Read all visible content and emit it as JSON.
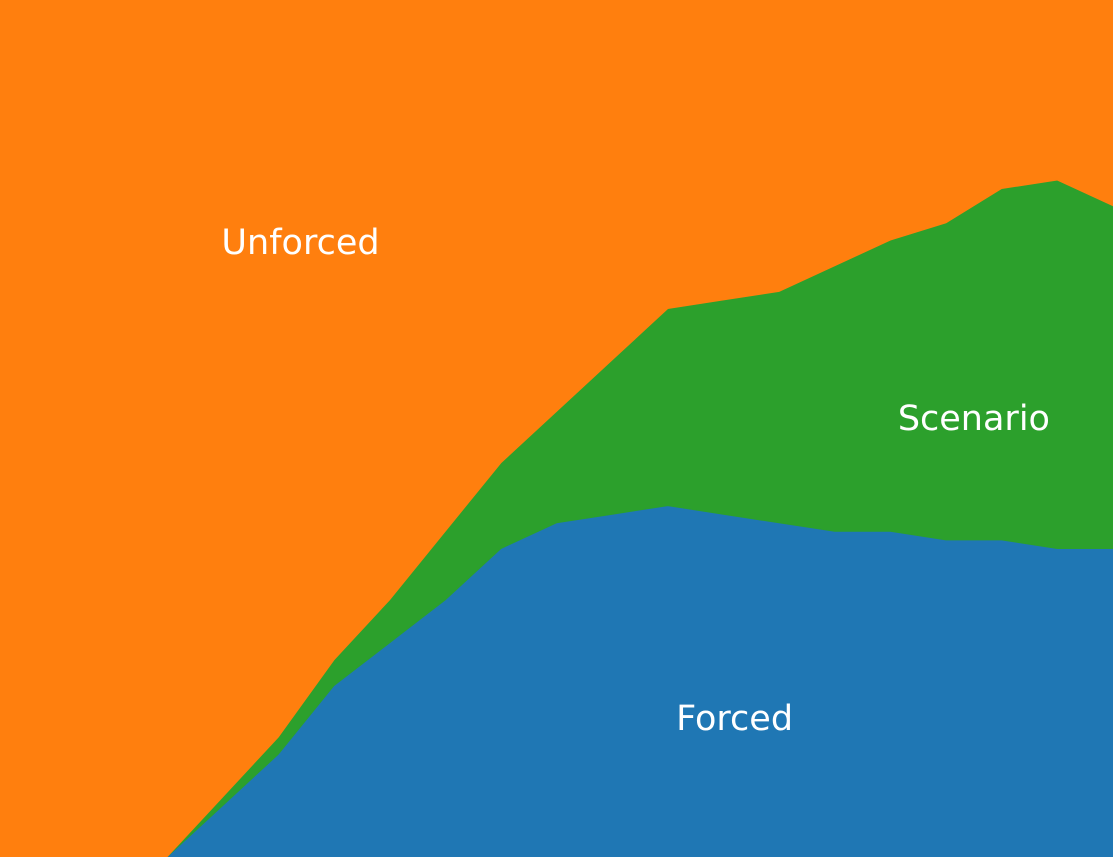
{
  "chart_data": {
    "type": "area",
    "stacked": true,
    "normalized": true,
    "xlim": [
      0,
      100
    ],
    "ylim": [
      0,
      1
    ],
    "grid": false,
    "legend": "none",
    "x": [
      0,
      5,
      10,
      15,
      20,
      25,
      30,
      35,
      40,
      45,
      50,
      55,
      60,
      65,
      70,
      75,
      80,
      85,
      90,
      95,
      100
    ],
    "series": [
      {
        "name": "Forced",
        "color": "#1f77b4",
        "values": [
          0.0,
          0.0,
          0.0,
          0.0,
          0.06,
          0.12,
          0.2,
          0.25,
          0.3,
          0.36,
          0.39,
          0.4,
          0.41,
          0.4,
          0.39,
          0.38,
          0.38,
          0.37,
          0.37,
          0.36,
          0.36
        ]
      },
      {
        "name": "Scenario",
        "color": "#2ca02c",
        "values": [
          0.0,
          0.0,
          0.0,
          0.0,
          0.01,
          0.02,
          0.03,
          0.05,
          0.08,
          0.1,
          0.13,
          0.18,
          0.23,
          0.25,
          0.27,
          0.31,
          0.34,
          0.37,
          0.41,
          0.43,
          0.4
        ]
      },
      {
        "name": "Unforced",
        "color": "#ff7f0e",
        "values": [
          1.0,
          1.0,
          1.0,
          1.0,
          0.93,
          0.86,
          0.77,
          0.7,
          0.62,
          0.54,
          0.48,
          0.42,
          0.36,
          0.35,
          0.34,
          0.31,
          0.28,
          0.26,
          0.22,
          0.21,
          0.24
        ]
      }
    ],
    "labels": [
      {
        "text": "Unforced",
        "series": "Unforced",
        "x": 27,
        "y": 0.715
      },
      {
        "text": "Scenario",
        "series": "Scenario",
        "x": 87.5,
        "y": 0.51
      },
      {
        "text": "Forced",
        "series": "Forced",
        "x": 66,
        "y": 0.16
      }
    ]
  }
}
